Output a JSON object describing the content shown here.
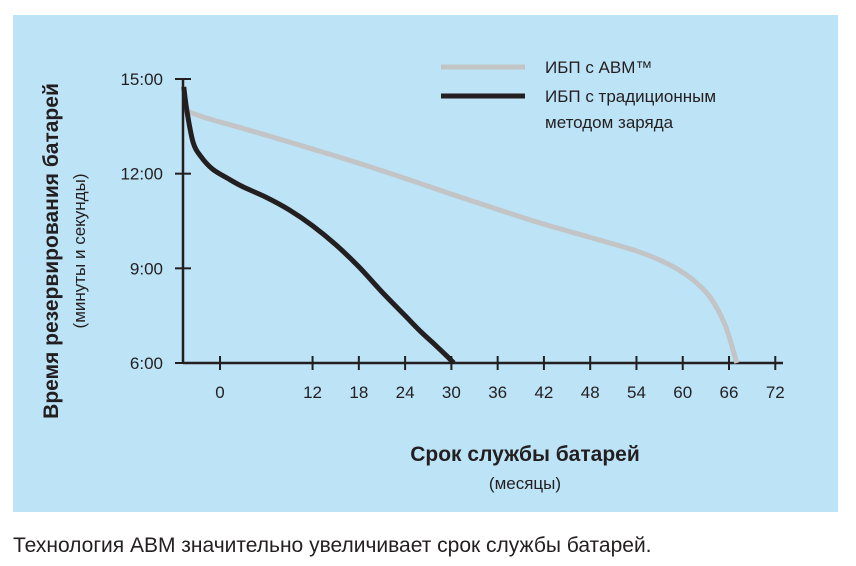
{
  "colors": {
    "panel_background": "#bde3f7",
    "abm_series": "#c2c4c6",
    "traditional_series": "#231f20",
    "axis": "#231f20",
    "text": "#231f20"
  },
  "chart_data": {
    "type": "line",
    "xlabel": "Срок службы батарей",
    "xlabel_sub": "(месяцы)",
    "ylabel": "Время резервирования батарей",
    "ylabel_sub": "(минуты и секунды)",
    "x_ticks": [
      "0",
      "12",
      "18",
      "24",
      "30",
      "36",
      "42",
      "48",
      "54",
      "60",
      "66",
      "72"
    ],
    "y_ticks": [
      "6:00",
      "9:00",
      "12:00",
      "15:00"
    ],
    "y_tick_values": [
      6,
      9,
      12,
      15
    ],
    "xlim": [
      -4.8,
      73
    ],
    "ylim": [
      6,
      15
    ],
    "grid": false,
    "legend_position": "top-right",
    "series": [
      {
        "name": "ИБП с ABM™",
        "color": "#c2c4c6",
        "x": [
          -4.5,
          -2,
          2,
          6,
          12,
          18,
          24,
          30,
          36,
          42,
          48,
          54,
          58,
          61,
          63.5,
          65.5,
          67
        ],
        "y": [
          14.0,
          13.78,
          13.5,
          13.22,
          12.78,
          12.33,
          11.85,
          11.35,
          10.87,
          10.4,
          9.98,
          9.55,
          9.15,
          8.7,
          8.1,
          7.2,
          6.0
        ]
      },
      {
        "name": "ИБП с традиционным методом заряда",
        "color": "#231f20",
        "x": [
          -4.7,
          -4.3,
          -3.5,
          -2.5,
          -1,
          1,
          3,
          6,
          9,
          12,
          15,
          18,
          21,
          24,
          26,
          28,
          29.5,
          30.3
        ],
        "y": [
          14.75,
          14.0,
          13.0,
          12.55,
          12.15,
          11.85,
          11.58,
          11.25,
          10.85,
          10.35,
          9.75,
          9.05,
          8.25,
          7.5,
          7.0,
          6.55,
          6.2,
          6.0
        ]
      }
    ]
  },
  "caption": "Технология ABM значительно увеличивает срок службы батарей."
}
